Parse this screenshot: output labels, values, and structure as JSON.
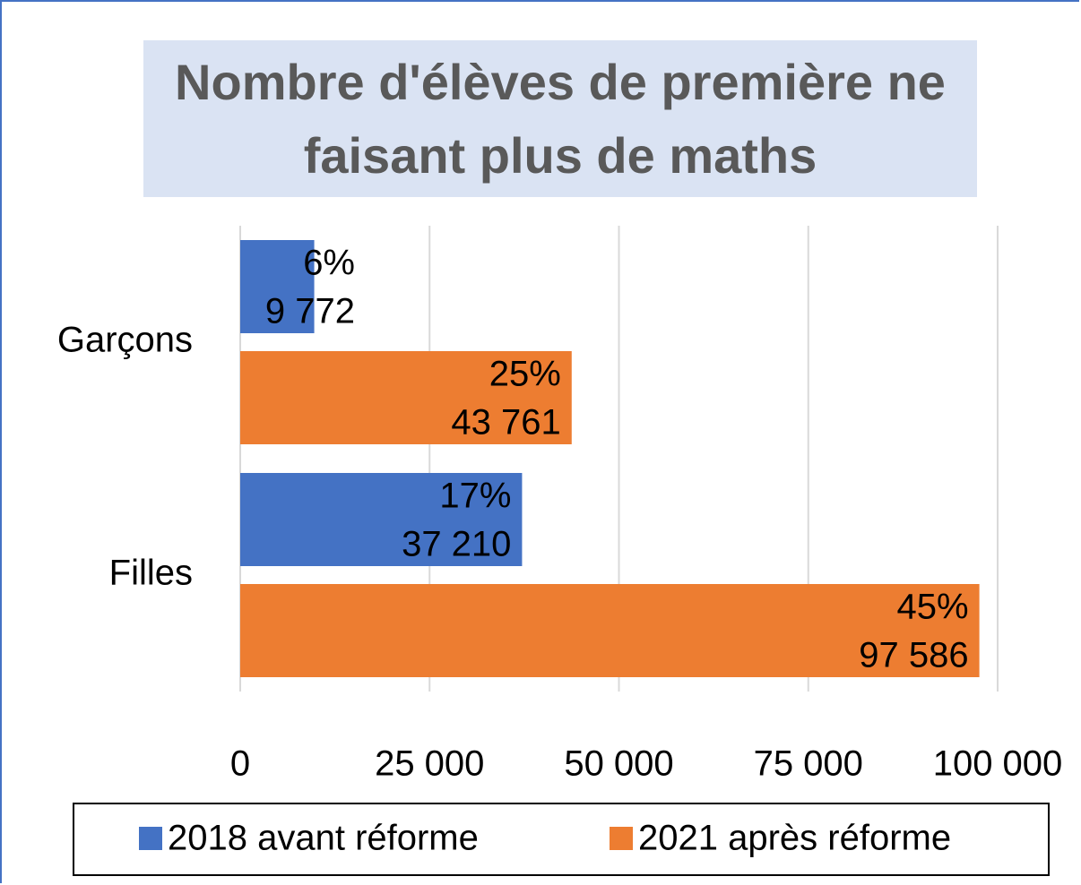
{
  "chart_data": {
    "type": "barh",
    "title": "Nombre d'élèves de première ne faisant plus de  maths",
    "categories": [
      "Garçons",
      "Filles"
    ],
    "series": [
      {
        "name": "2018 avant réforme",
        "color": "#4472c4",
        "values": [
          9772,
          37210
        ],
        "value_labels": [
          "9 772",
          "37 210"
        ],
        "percent_labels": [
          "6%",
          "17%"
        ]
      },
      {
        "name": "2021 après réforme",
        "color": "#ed7d31",
        "values": [
          43761,
          97586
        ],
        "value_labels": [
          "43 761",
          "97 586"
        ],
        "percent_labels": [
          "25%",
          "45%"
        ]
      }
    ],
    "xlim": [
      0,
      100000
    ],
    "xticks": [
      0,
      {
        "value": 25000,
        "label": "25 000"
      },
      {
        "value": 50000,
        "label": "50 000"
      },
      {
        "value": 75000,
        "label": "75 000"
      },
      {
        "value": 100000,
        "label": "100 000"
      }
    ],
    "grid": true,
    "legend": "bottom"
  }
}
